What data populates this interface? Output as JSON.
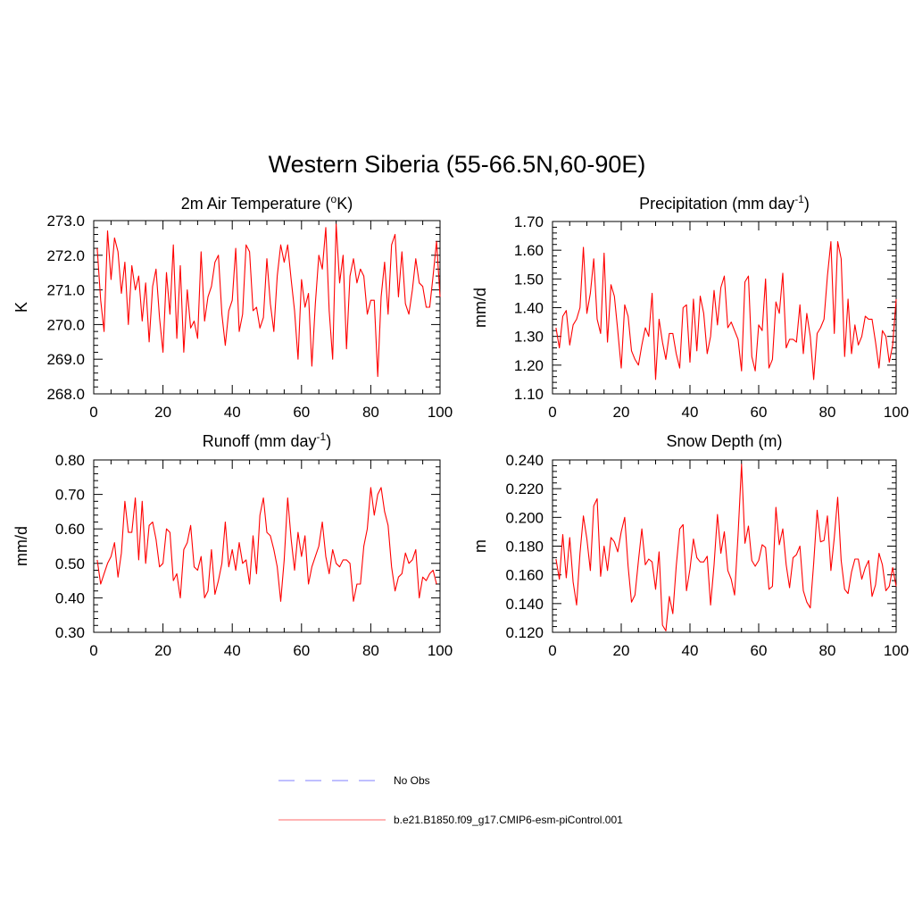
{
  "main_title": "Western Siberia (55-66.5N,60-90E)",
  "colors": {
    "model_line": "#ff0000",
    "obs_line": "#9999ff",
    "axes": "#000000"
  },
  "legend": {
    "obs_label": "No Obs",
    "model_label": "b.e21.B1850.f09_g17.CMIP6-esm-piControl.001"
  },
  "chart_data": [
    {
      "id": "tair",
      "type": "line",
      "title": "2m Air Temperature (",
      "title_sup": "o",
      "title_after": "K)",
      "ylabel": "K",
      "xlim": [
        0,
        100
      ],
      "ylim": [
        268.0,
        273.0
      ],
      "x_ticks": [
        0,
        20,
        40,
        60,
        80,
        100
      ],
      "y_ticks": [
        268.0,
        269.0,
        270.0,
        271.0,
        272.0,
        273.0
      ],
      "tick_labels_x": [
        "0",
        "20",
        "40",
        "60",
        "80",
        "100"
      ],
      "tick_labels_y": [
        "268.0",
        "269.0",
        "270.0",
        "271.0",
        "272.0",
        "273.0"
      ],
      "series": [
        {
          "name": "b.e21.B1850.f09_g17.CMIP6-esm-piControl.001",
          "x_start": 1,
          "values": [
            272.2,
            270.7,
            269.8,
            272.7,
            271.3,
            272.5,
            272.1,
            270.9,
            271.8,
            270.0,
            271.7,
            271.0,
            271.4,
            270.1,
            271.2,
            269.5,
            271.1,
            271.6,
            270.2,
            269.2,
            271.5,
            270.3,
            272.3,
            269.6,
            271.7,
            269.2,
            271.0,
            269.9,
            270.1,
            269.6,
            272.1,
            270.1,
            270.8,
            271.1,
            271.8,
            272.0,
            270.3,
            269.4,
            270.4,
            270.7,
            272.2,
            269.8,
            270.3,
            272.3,
            272.1,
            270.4,
            270.5,
            269.9,
            270.2,
            271.9,
            270.6,
            269.8,
            271.4,
            272.3,
            271.8,
            272.3,
            271.3,
            270.4,
            269.0,
            271.3,
            270.5,
            270.9,
            268.8,
            270.6,
            272.0,
            271.6,
            272.8,
            270.4,
            269.0,
            272.9,
            271.2,
            272.0,
            269.3,
            271.4,
            271.9,
            271.2,
            271.6,
            271.4,
            270.3,
            270.7,
            270.7,
            268.5,
            270.8,
            271.8,
            270.3,
            272.3,
            272.6,
            270.8,
            272.1,
            270.6,
            270.3,
            271.0,
            271.9,
            271.2,
            271.1,
            270.5,
            270.5,
            271.4,
            272.4,
            270.8
          ]
        }
      ]
    },
    {
      "id": "precip",
      "type": "line",
      "title": "Precipitation (mm day",
      "title_sup": "-1",
      "title_after": ")",
      "ylabel": "mm/d",
      "xlim": [
        0,
        100
      ],
      "ylim": [
        1.1,
        1.7
      ],
      "x_ticks": [
        0,
        20,
        40,
        60,
        80,
        100
      ],
      "y_ticks": [
        1.1,
        1.2,
        1.3,
        1.4,
        1.5,
        1.6,
        1.7
      ],
      "tick_labels_x": [
        "0",
        "20",
        "40",
        "60",
        "80",
        "100"
      ],
      "tick_labels_y": [
        "1.10",
        "1.20",
        "1.30",
        "1.40",
        "1.50",
        "1.60",
        "1.70"
      ],
      "series": [
        {
          "name": "b.e21.B1850.f09_g17.CMIP6-esm-piControl.001",
          "x_start": 1,
          "values": [
            1.33,
            1.26,
            1.37,
            1.39,
            1.27,
            1.34,
            1.36,
            1.4,
            1.61,
            1.38,
            1.45,
            1.57,
            1.36,
            1.31,
            1.59,
            1.28,
            1.48,
            1.44,
            1.32,
            1.19,
            1.41,
            1.37,
            1.25,
            1.22,
            1.2,
            1.27,
            1.33,
            1.3,
            1.45,
            1.15,
            1.36,
            1.28,
            1.22,
            1.31,
            1.31,
            1.24,
            1.19,
            1.4,
            1.41,
            1.21,
            1.43,
            1.25,
            1.44,
            1.38,
            1.24,
            1.3,
            1.46,
            1.34,
            1.47,
            1.51,
            1.33,
            1.35,
            1.32,
            1.29,
            1.18,
            1.49,
            1.51,
            1.23,
            1.18,
            1.34,
            1.32,
            1.5,
            1.19,
            1.22,
            1.42,
            1.38,
            1.52,
            1.26,
            1.29,
            1.29,
            1.28,
            1.41,
            1.24,
            1.38,
            1.3,
            1.15,
            1.31,
            1.33,
            1.36,
            1.51,
            1.63,
            1.31,
            1.63,
            1.57,
            1.23,
            1.43,
            1.24,
            1.34,
            1.27,
            1.3,
            1.37,
            1.36,
            1.36,
            1.28,
            1.19,
            1.32,
            1.3,
            1.21,
            1.27,
            1.43
          ]
        }
      ]
    },
    {
      "id": "runoff",
      "type": "line",
      "title": "Runoff (mm day",
      "title_sup": "-1",
      "title_after": ")",
      "ylabel": "mm/d",
      "xlim": [
        0,
        100
      ],
      "ylim": [
        0.3,
        0.8
      ],
      "x_ticks": [
        0,
        20,
        40,
        60,
        80,
        100
      ],
      "y_ticks": [
        0.3,
        0.4,
        0.5,
        0.6,
        0.7,
        0.8
      ],
      "tick_labels_x": [
        "0",
        "20",
        "40",
        "60",
        "80",
        "100"
      ],
      "tick_labels_y": [
        "0.30",
        "0.40",
        "0.50",
        "0.60",
        "0.70",
        "0.80"
      ],
      "series": [
        {
          "name": "b.e21.B1850.f09_g17.CMIP6-esm-piControl.001",
          "x_start": 1,
          "values": [
            0.51,
            0.44,
            0.47,
            0.5,
            0.52,
            0.56,
            0.46,
            0.53,
            0.68,
            0.59,
            0.59,
            0.69,
            0.51,
            0.68,
            0.5,
            0.61,
            0.62,
            0.57,
            0.49,
            0.5,
            0.6,
            0.59,
            0.45,
            0.47,
            0.4,
            0.54,
            0.56,
            0.61,
            0.49,
            0.48,
            0.52,
            0.4,
            0.42,
            0.54,
            0.41,
            0.45,
            0.5,
            0.62,
            0.49,
            0.54,
            0.48,
            0.56,
            0.5,
            0.51,
            0.44,
            0.58,
            0.47,
            0.64,
            0.69,
            0.59,
            0.58,
            0.54,
            0.49,
            0.39,
            0.51,
            0.69,
            0.57,
            0.48,
            0.59,
            0.52,
            0.58,
            0.44,
            0.49,
            0.52,
            0.55,
            0.62,
            0.52,
            0.47,
            0.54,
            0.5,
            0.49,
            0.51,
            0.51,
            0.5,
            0.39,
            0.44,
            0.44,
            0.55,
            0.6,
            0.72,
            0.64,
            0.7,
            0.72,
            0.65,
            0.61,
            0.49,
            0.42,
            0.46,
            0.47,
            0.53,
            0.5,
            0.51,
            0.54,
            0.4,
            0.46,
            0.45,
            0.47,
            0.48,
            0.44
          ]
        }
      ]
    },
    {
      "id": "snow",
      "type": "line",
      "title": "Snow Depth (m)",
      "title_sup": "",
      "title_after": "",
      "ylabel": "m",
      "xlim": [
        0,
        100
      ],
      "ylim": [
        0.12,
        0.24
      ],
      "x_ticks": [
        0,
        20,
        40,
        60,
        80,
        100
      ],
      "y_ticks": [
        0.12,
        0.14,
        0.16,
        0.18,
        0.2,
        0.22,
        0.24
      ],
      "tick_labels_x": [
        "0",
        "20",
        "40",
        "60",
        "80",
        "100"
      ],
      "tick_labels_y": [
        "0.120",
        "0.140",
        "0.160",
        "0.180",
        "0.200",
        "0.220",
        "0.240"
      ],
      "series": [
        {
          "name": "b.e21.B1850.f09_g17.CMIP6-esm-piControl.001",
          "x_start": 1,
          "values": [
            0.171,
            0.157,
            0.188,
            0.158,
            0.186,
            0.155,
            0.139,
            0.175,
            0.201,
            0.185,
            0.163,
            0.208,
            0.213,
            0.159,
            0.18,
            0.163,
            0.186,
            0.183,
            0.176,
            0.19,
            0.2,
            0.166,
            0.141,
            0.146,
            0.17,
            0.192,
            0.167,
            0.171,
            0.169,
            0.15,
            0.176,
            0.125,
            0.121,
            0.145,
            0.133,
            0.166,
            0.192,
            0.195,
            0.149,
            0.164,
            0.185,
            0.172,
            0.169,
            0.169,
            0.173,
            0.139,
            0.167,
            0.202,
            0.175,
            0.19,
            0.163,
            0.157,
            0.146,
            0.188,
            0.237,
            0.182,
            0.194,
            0.17,
            0.166,
            0.17,
            0.181,
            0.179,
            0.15,
            0.152,
            0.207,
            0.181,
            0.192,
            0.167,
            0.151,
            0.172,
            0.174,
            0.18,
            0.149,
            0.141,
            0.137,
            0.168,
            0.205,
            0.183,
            0.184,
            0.201,
            0.163,
            0.186,
            0.214,
            0.17,
            0.15,
            0.147,
            0.162,
            0.171,
            0.171,
            0.157,
            0.165,
            0.17,
            0.145,
            0.153,
            0.175,
            0.167,
            0.149,
            0.152,
            0.165,
            0.152
          ]
        }
      ]
    }
  ]
}
